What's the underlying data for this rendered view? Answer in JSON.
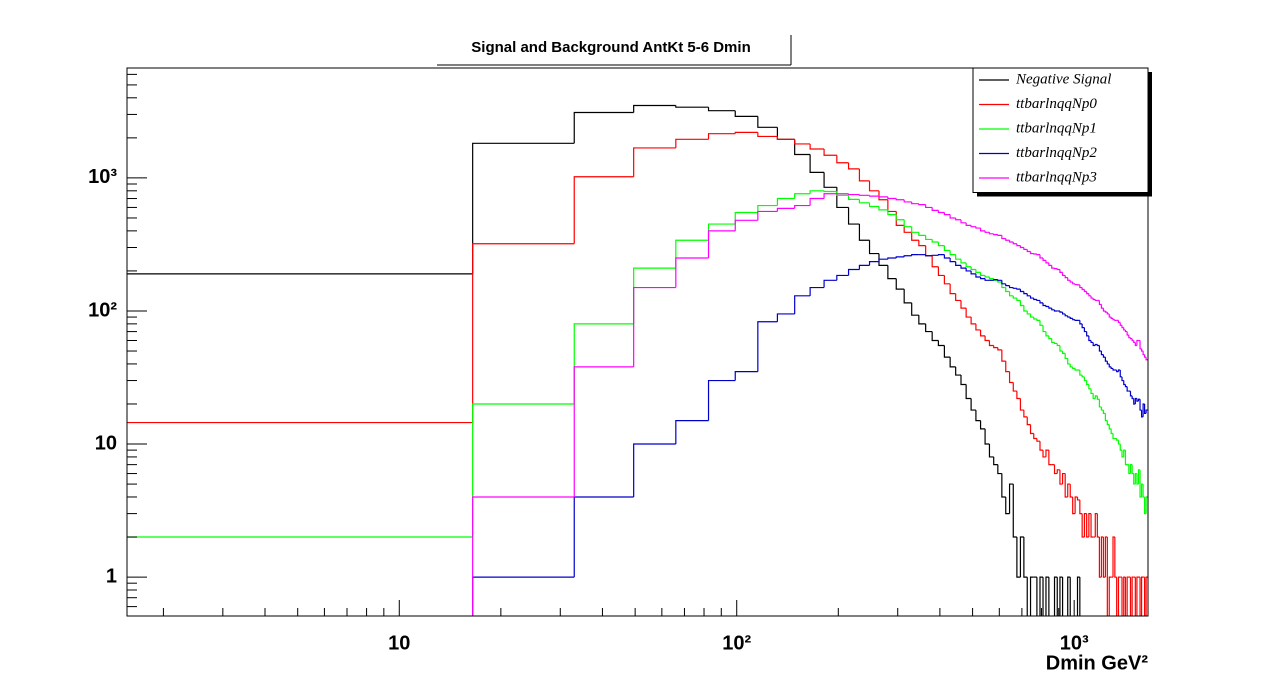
{
  "chart_data": {
    "type": "histogram",
    "title": "Signal and Background AntKt 5-6 Dmin",
    "x_label": "Dmin GeV²",
    "log_x": true,
    "log_y": true,
    "legend": "top-right",
    "xlim": [
      1.56,
      1655
    ],
    "ylim": [
      0.51,
      6700
    ],
    "xticks": [
      {
        "value": 10,
        "label": "10"
      },
      {
        "value": 100,
        "label": "10²"
      },
      {
        "value": 1000,
        "label": "10³"
      }
    ],
    "x_minor_ticks": [
      2,
      3,
      4,
      5,
      6,
      7,
      8,
      9,
      20,
      30,
      40,
      50,
      60,
      70,
      80,
      90,
      200,
      300,
      400,
      500,
      600,
      700,
      800,
      900
    ],
    "yticks": [
      1,
      10,
      {
        "value": 100,
        "label": "10²"
      },
      {
        "value": 1000,
        "label": "10³"
      }
    ],
    "y_minor_ticks": [
      0.6,
      0.7,
      0.8,
      0.9,
      2,
      3,
      4,
      5,
      6,
      7,
      8,
      9,
      20,
      30,
      40,
      50,
      60,
      70,
      80,
      90,
      200,
      300,
      400,
      500,
      600,
      700,
      800,
      900,
      2000,
      3000,
      4000,
      5000,
      6000
    ],
    "bins": [
      0,
      16.5,
      33,
      49.5,
      66,
      82.5,
      99,
      115.5,
      132,
      148.5,
      165,
      181.5,
      198,
      214.5,
      231,
      247.5,
      264,
      280.5,
      297,
      313.5,
      330,
      346.5,
      363,
      379.5,
      396,
      412.5,
      429,
      445.5,
      462,
      478.5,
      495,
      511.5,
      528,
      544.5,
      561,
      577.5,
      594,
      610.5,
      627,
      643.5,
      660,
      676.5,
      693,
      709.5,
      726,
      742.5,
      759,
      775.5,
      792,
      808.5,
      825,
      841.5,
      858,
      874.5,
      891,
      907.5,
      924,
      940.5,
      957,
      973.5,
      990,
      1006.5,
      1023,
      1039.5,
      1056,
      1072.5,
      1089,
      1105.5,
      1122,
      1138.5,
      1155,
      1171.5,
      1188,
      1204.5,
      1221,
      1237.5,
      1254,
      1270.5,
      1287,
      1303.5,
      1320,
      1336.5,
      1353,
      1369.5,
      1386,
      1402.5,
      1419,
      1435.5,
      1452,
      1468.5,
      1485,
      1501.5,
      1518,
      1534.5,
      1551,
      1567.5,
      1584,
      1600.5,
      1617,
      1633.5,
      1650
    ],
    "series": [
      {
        "name": "Negative Signal",
        "color": "#000000",
        "values": [
          190,
          1820,
          3100,
          3500,
          3400,
          3200,
          2900,
          2400,
          1950,
          1500,
          1100,
          850,
          600,
          450,
          340,
          270,
          220,
          175,
          146,
          115,
          93,
          80,
          70,
          60,
          55,
          45,
          38,
          33,
          28,
          22,
          18,
          15,
          13,
          10,
          8,
          7,
          6,
          4,
          3,
          5,
          2,
          1,
          2,
          1,
          0,
          1,
          1,
          0,
          1,
          0,
          1,
          0,
          0,
          1,
          0,
          1,
          0,
          0,
          1,
          0,
          0,
          0,
          1,
          0,
          0,
          0,
          0,
          0,
          0,
          0,
          0,
          0,
          0,
          0,
          0,
          0,
          0,
          0,
          0,
          0,
          0,
          0,
          0,
          0,
          0,
          0,
          0,
          0,
          0,
          0,
          0,
          0,
          0,
          0,
          0,
          0,
          0,
          0,
          0,
          0
        ]
      },
      {
        "name": "ttbarlnqqNp0",
        "color": "#ff0000",
        "values": [
          14.5,
          320,
          1020,
          1680,
          1950,
          2150,
          2200,
          2050,
          1950,
          1800,
          1650,
          1480,
          1300,
          1170,
          950,
          800,
          685,
          560,
          440,
          390,
          340,
          310,
          260,
          215,
          185,
          160,
          135,
          120,
          105,
          90,
          80,
          72,
          65,
          60,
          55,
          53,
          51,
          42,
          35,
          29,
          25,
          22,
          18,
          16,
          14,
          12,
          11,
          10.5,
          9,
          8,
          9,
          7,
          7,
          6,
          6.4,
          5,
          6,
          4,
          5,
          4,
          3,
          4,
          3.8,
          3,
          2,
          3,
          2,
          3,
          2,
          2,
          3,
          2,
          1,
          2,
          1,
          2,
          0,
          1,
          1,
          2,
          1,
          0,
          1,
          1,
          0,
          1,
          0,
          1,
          1,
          0,
          1,
          1,
          0,
          1,
          1,
          0,
          1,
          1,
          0,
          1
        ]
      },
      {
        "name": "ttbarlnqqNp1",
        "color": "#00ff00",
        "values": [
          2,
          20,
          80,
          210,
          340,
          450,
          550,
          620,
          700,
          760,
          800,
          790,
          740,
          690,
          650,
          610,
          575,
          530,
          485,
          430,
          390,
          370,
          345,
          330,
          310,
          285,
          265,
          245,
          230,
          215,
          205,
          195,
          185,
          180,
          175,
          170,
          165,
          150,
          140,
          130,
          125,
          120,
          110,
          100,
          95,
          90,
          87,
          85,
          78,
          70,
          65,
          62,
          58,
          57,
          55,
          50,
          48,
          44,
          40,
          38,
          37,
          36,
          36,
          33,
          32,
          30,
          28,
          26,
          24,
          22,
          23,
          21.7,
          19,
          18,
          17,
          15,
          14,
          13,
          12,
          11,
          11,
          10.7,
          10,
          9,
          8,
          9,
          7,
          7,
          6,
          7,
          6,
          5,
          6,
          5,
          6.4,
          4,
          5,
          4,
          3,
          4
        ]
      },
      {
        "name": "ttbarlnqqNp2",
        "color": "#0000cc",
        "values": [
          0,
          1,
          4,
          10,
          15,
          30,
          35,
          83,
          95,
          130,
          150,
          170,
          185,
          205,
          220,
          235,
          245,
          250,
          255,
          260,
          265,
          265,
          260,
          262,
          265,
          250,
          235,
          220,
          210,
          200,
          190,
          180,
          175,
          170,
          170,
          172,
          170,
          160,
          155,
          150,
          148,
          146,
          140,
          135,
          130,
          125,
          122,
          120,
          115,
          110,
          108,
          105,
          102,
          100,
          100,
          98,
          95,
          92,
          90,
          88,
          86,
          85,
          85,
          80,
          75,
          70,
          65,
          60,
          58,
          55,
          56,
          55,
          50,
          47,
          45,
          42,
          40,
          38,
          37,
          36,
          36,
          35,
          36,
          32,
          30,
          28,
          27,
          25,
          25,
          23,
          22,
          20,
          22,
          21,
          21.7,
          18,
          16,
          20,
          17,
          18
        ]
      },
      {
        "name": "ttbarlnqqNp3",
        "color": "#ff00ff",
        "values": [
          0,
          4,
          38,
          150,
          250,
          400,
          480,
          560,
          590,
          620,
          700,
          760,
          760,
          750,
          740,
          730,
          720,
          700,
          685,
          660,
          640,
          630,
          600,
          570,
          550,
          530,
          500,
          485,
          460,
          440,
          430,
          420,
          400,
          390,
          380,
          375,
          370,
          350,
          340,
          330,
          320,
          310,
          300,
          290,
          280,
          270,
          268,
          265,
          250,
          240,
          230,
          220,
          210,
          208,
          205,
          195,
          185,
          178,
          170,
          165,
          160,
          158,
          157,
          150,
          145,
          140,
          135,
          130,
          125,
          122,
          120,
          120,
          112,
          105,
          100,
          98,
          95,
          90,
          88,
          86,
          85,
          85,
          82,
          78,
          75,
          72,
          70,
          66,
          63,
          62,
          60,
          58,
          55,
          60,
          60,
          52,
          50,
          47,
          45,
          43
        ]
      }
    ]
  }
}
